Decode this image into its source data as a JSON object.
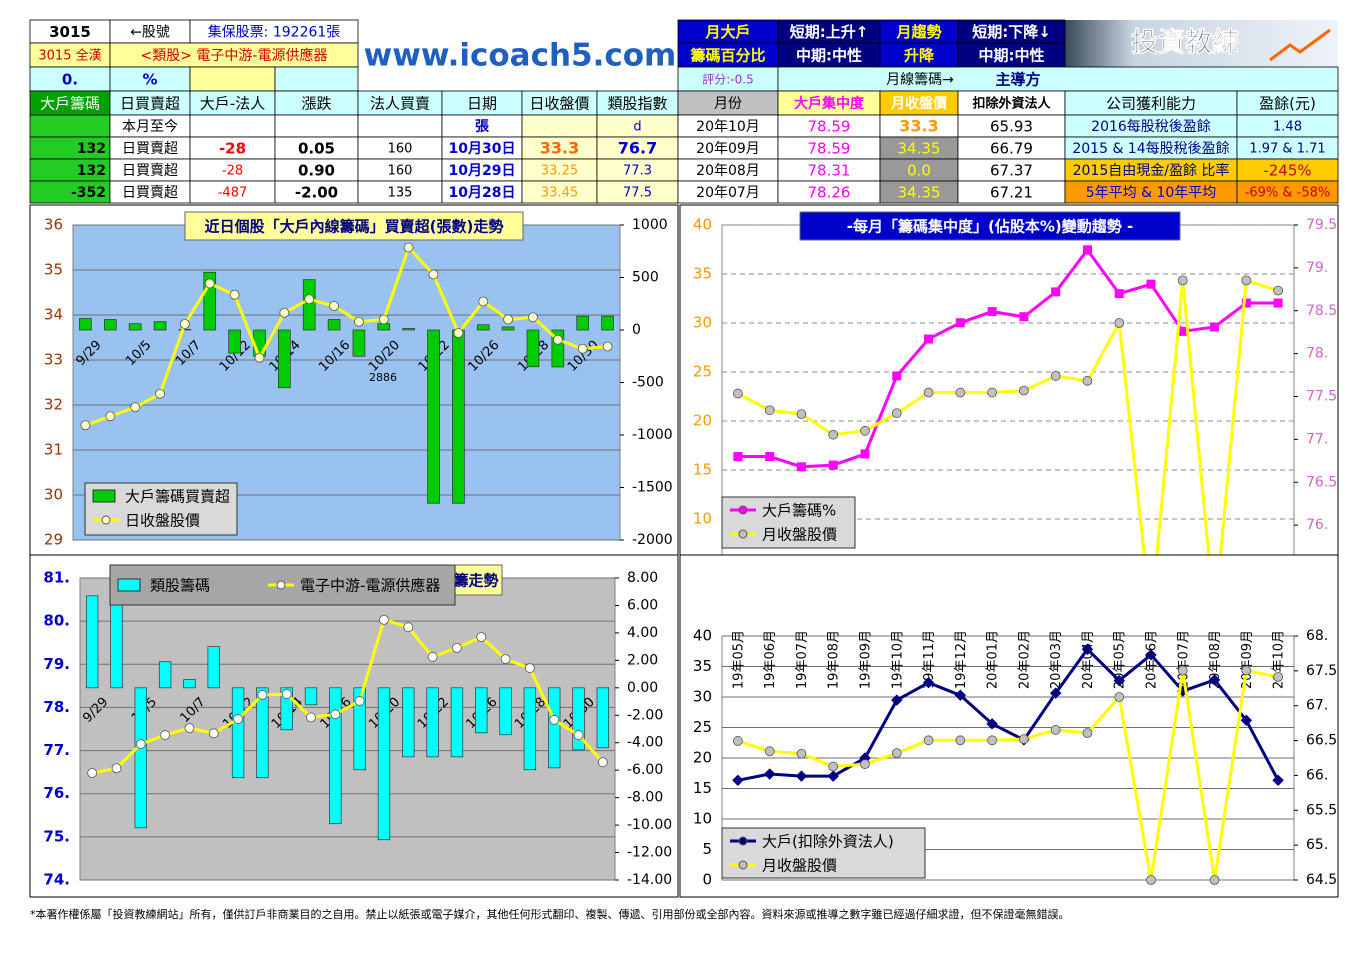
{
  "header": {
    "stock_code": "3015",
    "stock_code_label": "←股號",
    "shares": "集保股票: 192261張",
    "stock_name": "3015 全漢",
    "sector": "<類股> 電子中游-電源供應器",
    "score_pct": "0.",
    "pct_sign": "%",
    "site": "www.icoach5.com",
    "month_big_holder": [
      "月大戶",
      "籌碼百分比"
    ],
    "short_mid_1": [
      "短期:上升↑",
      "中期:中性"
    ],
    "month_trend": [
      "月趨勢",
      "升降"
    ],
    "short_mid_2": [
      "短期:下降↓",
      "中期:中性"
    ],
    "logo_text": "投資教練",
    "rating": "評分:-0.5",
    "monthly_chip": "月線籌碼→",
    "lead": "主導方"
  },
  "table": {
    "columns": [
      "大戶籌碼",
      "日買賣超",
      "大戶-法人",
      "漲跌",
      "法人買賣",
      "日期",
      "日收盤價",
      "類股指數",
      "月份",
      "大戶集中度",
      "月收盤價",
      "扣除外資法人",
      "公司獲利能力",
      "盈餘(元)"
    ],
    "rows": [
      [
        null,
        "本月至今",
        null,
        null,
        null,
        "張",
        null,
        "d",
        "20年10月",
        "78.59",
        "33.3",
        "65.93",
        "2016每股稅後盈餘",
        "1.48"
      ],
      [
        "132",
        "日買賣超",
        "-28",
        "0.05",
        "160",
        "10月30日",
        "33.3",
        "76.7",
        "20年09月",
        "78.59",
        "34.35",
        "66.79",
        "2015 & 14每股稅後盈餘",
        "1.97 & 1.71"
      ],
      [
        "132",
        "日買賣超",
        "-28",
        "0.90",
        "160",
        "10月29日",
        "33.25",
        "77.3",
        "20年08月",
        "78.31",
        "0.0",
        "67.37",
        "2015自由現金/盈餘 比率",
        "-245%"
      ],
      [
        "-352",
        "日買賣超",
        "-487",
        "-2.00",
        "135",
        "10月28日",
        "33.45",
        "77.5",
        "20年07月",
        "78.26",
        "34.35",
        "67.21",
        "5年平均 & 10年平均",
        "-69% & -58%"
      ]
    ]
  },
  "chart_data": [
    {
      "type": "combo",
      "title": "近日個股「大戶內線籌碼」買賣超(張數)走勢",
      "annotation": "2886",
      "categories": [
        "9/29",
        null,
        "10/5",
        null,
        "10/7",
        null,
        "10/12",
        null,
        "10/14",
        null,
        "10/16",
        null,
        "10/20",
        null,
        "10/22",
        null,
        "10/26",
        null,
        "10/28",
        null,
        "10/30",
        null
      ],
      "ylim": [
        29,
        36
      ],
      "yticks": [
        29,
        30,
        31,
        32,
        33,
        34,
        35,
        36
      ],
      "y2lim": [
        -2000,
        1000
      ],
      "y2ticks": [
        -2000,
        -1500,
        -1000,
        -500,
        0,
        500,
        1000
      ],
      "grid": true,
      "legend": "lower-left",
      "plot_background": "#99c2f0",
      "series": [
        {
          "name": "大戶籌碼買賣超",
          "type": "bar",
          "axis": "y2",
          "color": "#00cc00",
          "values": [
            110,
            100,
            60,
            80,
            5,
            550,
            -220,
            -250,
            -550,
            480,
            100,
            -250,
            60,
            15,
            -1650,
            -1650,
            50,
            30,
            -350,
            -352,
            132,
            132
          ]
        },
        {
          "name": "日收盤股價",
          "type": "line",
          "axis": "y",
          "color": "#ffff00",
          "marker": "circle",
          "marker_color": "#ffffcc",
          "values": [
            31.55,
            31.75,
            31.95,
            32.25,
            33.8,
            34.7,
            34.45,
            33.05,
            34.05,
            34.35,
            34.2,
            33.85,
            33.9,
            35.5,
            34.9,
            33.6,
            34.3,
            33.9,
            33.95,
            33.45,
            33.25,
            33.3
          ]
        }
      ]
    },
    {
      "type": "line",
      "title": "-每月「籌碼集中度」(佔股本%)變動趨勢 -",
      "ylim": [
        5,
        40
      ],
      "yticks": [
        10,
        15,
        20,
        25,
        30,
        35,
        40
      ],
      "y2lim": [
        75.5,
        79.5
      ],
      "y2ticks": [
        {
          "value": 76,
          "label": "76."
        },
        76.5,
        {
          "value": 77,
          "label": "77."
        },
        77.5,
        {
          "value": 78,
          "label": "78."
        },
        78.5,
        {
          "value": 79,
          "label": "79."
        },
        79.5
      ],
      "grid": "dashed",
      "legend": "lower-left",
      "series": [
        {
          "name": "大戶籌碼%",
          "type": "line",
          "axis": "y2",
          "color": "#ff00ff",
          "marker": "square",
          "marker_color": "#ff00ff",
          "values": [
            76.8,
            76.8,
            76.68,
            76.7,
            76.83,
            77.74,
            78.17,
            78.36,
            78.49,
            78.43,
            78.72,
            79.21,
            78.7,
            78.81,
            78.26,
            78.31,
            78.59,
            78.59
          ]
        },
        {
          "name": "月收盤股價",
          "type": "line",
          "axis": "y",
          "color": "#ffff00",
          "marker": "circle",
          "marker_color": "#c0c0c0",
          "values": [
            22.8,
            21.1,
            20.7,
            18.6,
            19.0,
            20.8,
            22.9,
            22.9,
            22.9,
            23.1,
            24.6,
            24.1,
            30.0,
            0,
            34.35,
            0,
            34.35,
            33.3
          ]
        }
      ]
    },
    {
      "type": "combo",
      "title": "籌走勢",
      "categories": [
        "9/29",
        null,
        "10/5",
        null,
        "10/7",
        null,
        "10/12",
        null,
        "10/14",
        null,
        "10/16",
        null,
        "10/20",
        null,
        "10/22",
        null,
        "10/26",
        null,
        "10/28",
        null,
        "10/30",
        null
      ],
      "ylim": [
        74,
        81
      ],
      "yticks": [
        {
          "value": 74,
          "label": "74."
        },
        {
          "value": 75,
          "label": "75."
        },
        {
          "value": 76,
          "label": "76."
        },
        {
          "value": 77,
          "label": "77."
        },
        {
          "value": 78,
          "label": "78."
        },
        {
          "value": 79,
          "label": "79."
        },
        {
          "value": 80,
          "label": "80."
        },
        {
          "value": 81,
          "label": "81."
        }
      ],
      "y2lim": [
        -14,
        8
      ],
      "y2ticks": [
        {
          "value": -14,
          "label": "-14.00"
        },
        {
          "value": -12,
          "label": "-12.00"
        },
        {
          "value": -10,
          "label": "-10.00"
        },
        {
          "value": -8,
          "label": "-8.00"
        },
        {
          "value": -6,
          "label": "-6.00"
        },
        {
          "value": -4,
          "label": "-4.00"
        },
        {
          "value": -2,
          "label": "-2.00"
        },
        {
          "value": 0,
          "label": "0.00"
        },
        {
          "value": 2,
          "label": "2.00"
        },
        {
          "value": 4,
          "label": "4.00"
        },
        {
          "value": 6,
          "label": "6.00"
        },
        {
          "value": 8,
          "label": "8.00"
        }
      ],
      "grid": true,
      "legend": "top",
      "plot_background": "#c0c0c0",
      "series": [
        {
          "name": "類股籌碼",
          "type": "bar",
          "axis": "y2",
          "color": "#00ffff",
          "values": [
            6.7,
            6.4,
            -10.2,
            1.9,
            0.6,
            3.0,
            -6.55,
            -6.55,
            -3.06,
            -1.24,
            -9.9,
            -5.97,
            -11.07,
            -5.03,
            -5.03,
            -5.03,
            -3.28,
            -3.42,
            -5.97,
            -5.83,
            -4.52,
            -4.37
          ]
        },
        {
          "name": "電子中游-電源供應器",
          "type": "line",
          "axis": "y",
          "color": "#ffff00",
          "marker": "circle",
          "marker_color": "#ffffff",
          "values": [
            76.48,
            76.59,
            77.15,
            77.36,
            77.52,
            77.4,
            77.73,
            78.29,
            78.31,
            77.77,
            77.84,
            78.15,
            80.03,
            79.86,
            79.17,
            79.38,
            79.63,
            79.12,
            78.91,
            77.71,
            77.36,
            76.73
          ]
        }
      ]
    },
    {
      "type": "line",
      "categories": [
        "19年05月",
        "19年06月",
        "19年07月",
        "19年08月",
        "19年09月",
        "19年10月",
        "19年11月",
        "19年12月",
        "20年01月",
        "20年02月",
        "20年03月",
        "20年04月",
        "20年05月",
        "20年06月",
        "20年07月",
        "20年08月",
        "20年09月",
        "20年10月"
      ],
      "ylim": [
        0,
        40
      ],
      "yticks": [
        0,
        5,
        10,
        15,
        20,
        25,
        30,
        35,
        40
      ],
      "y2lim": [
        64.5,
        68
      ],
      "y2ticks": [
        64.5,
        {
          "value": 65,
          "label": "65."
        },
        65.5,
        {
          "value": 66,
          "label": "66."
        },
        66.5,
        {
          "value": 67,
          "label": "67."
        },
        67.5,
        {
          "value": 68,
          "label": "68."
        }
      ],
      "grid": true,
      "legend": "lower-left",
      "series": [
        {
          "name": "大戶(扣除外資法人)",
          "type": "line",
          "axis": "y2",
          "color": "#000080",
          "marker": "diamond",
          "marker_color": "#000080",
          "values": [
            65.93,
            66.02,
            65.99,
            65.99,
            66.25,
            67.08,
            67.33,
            67.15,
            66.74,
            66.51,
            67.18,
            67.81,
            67.36,
            67.73,
            67.21,
            67.37,
            66.79,
            65.93
          ]
        },
        {
          "name": "月收盤股價",
          "type": "line",
          "axis": "y",
          "color": "#ffff00",
          "marker": "circle",
          "marker_color": "#c0c0c0",
          "values": [
            22.8,
            21.1,
            20.7,
            18.6,
            19.0,
            20.8,
            22.9,
            22.9,
            22.9,
            23.1,
            24.6,
            24.1,
            30.0,
            0,
            34.35,
            0,
            34.35,
            33.3
          ]
        }
      ]
    }
  ],
  "footer": "*本著作權係屬「投資教練網站」所有，僅供訂戶非商業目的之自用。禁止以紙張或電子媒介，其他任何形式翻印、複製、傳遞、引用部份或全部內容。資料來源或推導之數字雖已經過仔細求證，但不保證毫無錯誤。"
}
